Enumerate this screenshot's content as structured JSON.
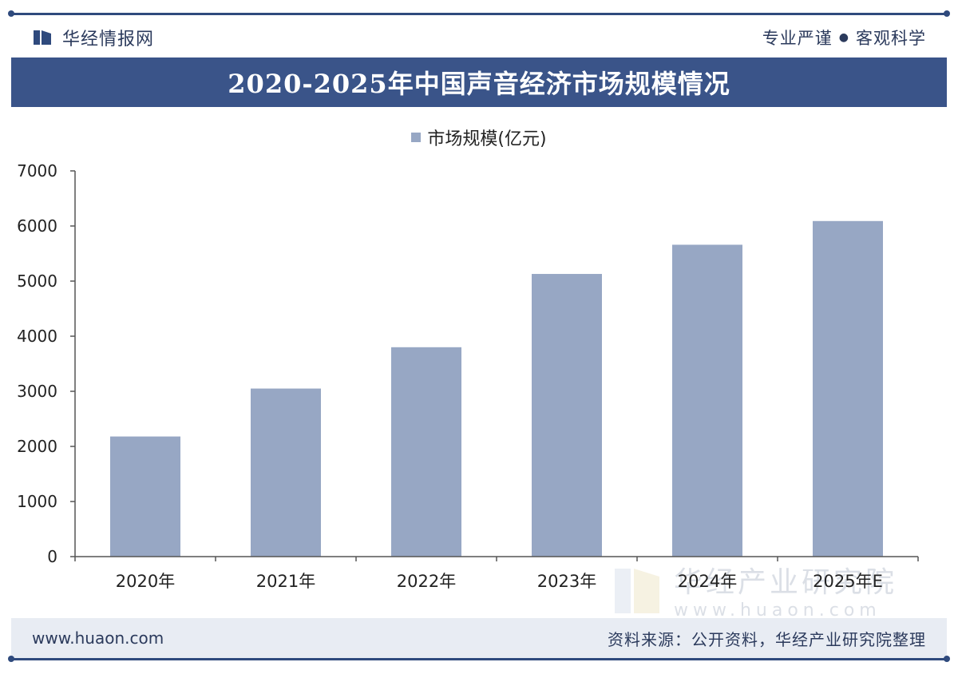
{
  "header": {
    "brand": "华经情报网",
    "slogan_left": "专业严谨",
    "slogan_dot": "●",
    "slogan_right": "客观科学"
  },
  "title": "2020-2025年中国声音经济市场规模情况",
  "watermark": {
    "cn": "华经产业研究院",
    "url": "www.huaon.com"
  },
  "footer": {
    "url": "www.huaon.com",
    "source": "资料来源：公开资料，华经产业研究院整理"
  },
  "colors": {
    "bar": "#97a7c4",
    "banner": "#3a5489",
    "axis": "#555555"
  },
  "chart_data": {
    "type": "bar",
    "title": "2020-2025年中国声音经济市场规模情况",
    "categories": [
      "2020年",
      "2021年",
      "2022年",
      "2023年",
      "2024年",
      "2025年E"
    ],
    "series": [
      {
        "name": "市场规模(亿元)",
        "values": [
          2180,
          3050,
          3800,
          5130,
          5660,
          6090
        ]
      }
    ],
    "ylim": [
      0,
      7000
    ],
    "yticks": [
      "0",
      "1000",
      "2000",
      "3000",
      "4000",
      "5000",
      "6000",
      "7000"
    ],
    "ytick_values": [
      0,
      1000,
      2000,
      3000,
      4000,
      5000,
      6000,
      7000
    ],
    "xlabel": "",
    "ylabel": "",
    "legend_position": "top-center",
    "grid": false
  }
}
